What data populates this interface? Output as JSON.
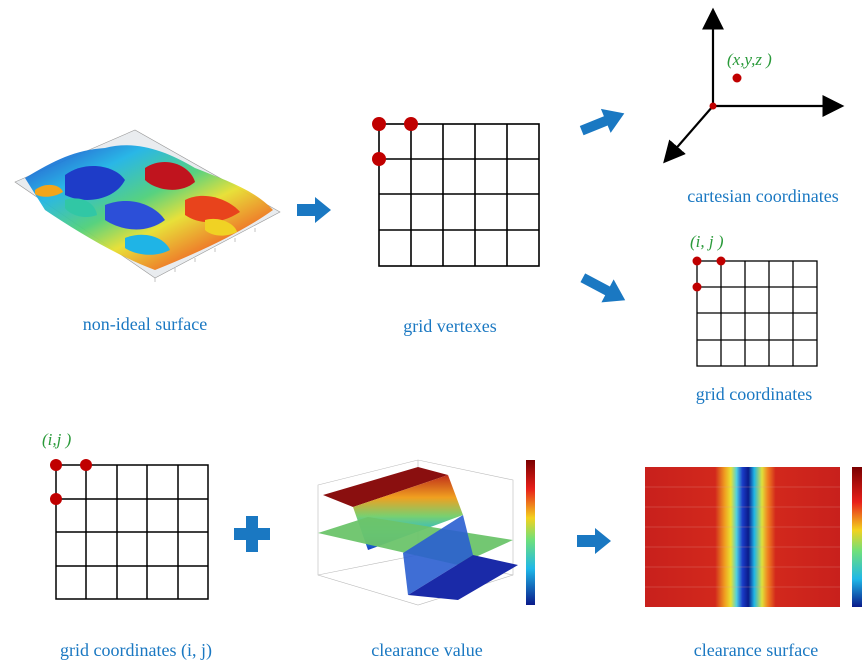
{
  "captions": {
    "non_ideal_surface": "non-ideal surface",
    "grid_vertexes": "grid vertexes",
    "cartesian_coordinates": "cartesian coordinates",
    "grid_coordinates": "grid coordinates",
    "grid_coordinates_ij": "grid coordinates (i,  j)",
    "clearance_value": "clearance value",
    "clearance_surface": "clearance surface"
  },
  "labels": {
    "xyz": "(x,y,z )",
    "ij_top": "(i, j )",
    "ij_bottom": "(i,j )"
  },
  "colors": {
    "caption": "#1a78c2",
    "arrow": "#1a78c2",
    "vertex_dot": "#c00000",
    "label_green": "#2a9a3a"
  }
}
